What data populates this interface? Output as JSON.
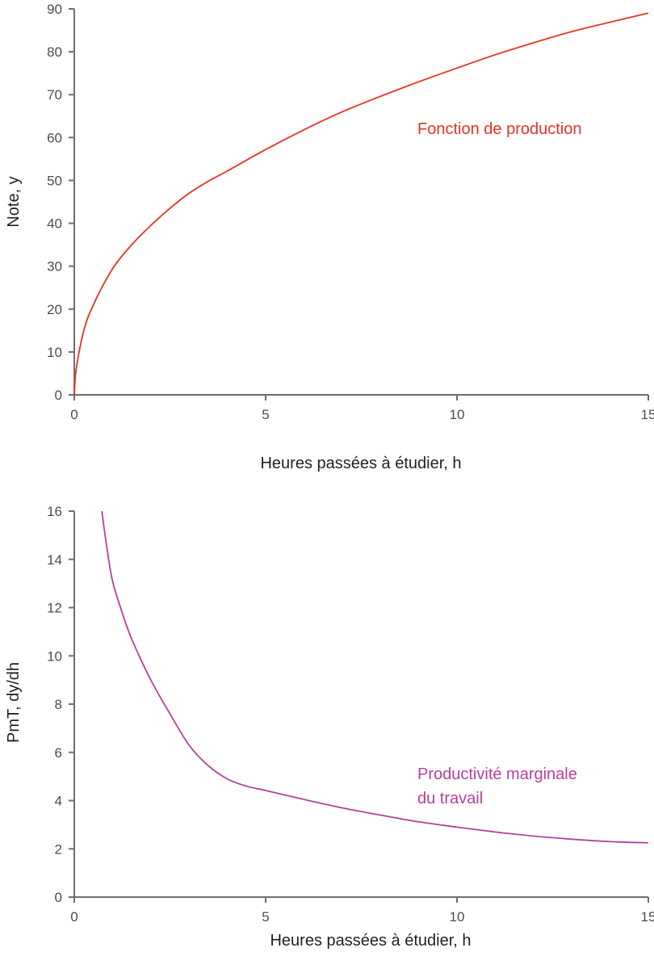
{
  "chart_data": [
    {
      "type": "line",
      "xlabel": "Heures passées à étudier, h",
      "ylabel": "Note, y",
      "xlim": [
        0,
        15
      ],
      "ylim": [
        0,
        90
      ],
      "xticks": [
        "0",
        "5",
        "10",
        "15"
      ],
      "yticks": [
        "0",
        "10",
        "20",
        "30",
        "40",
        "50",
        "60",
        "70",
        "80",
        "90"
      ],
      "grid": false,
      "annotation": "Fonction de production",
      "color": "#e63323",
      "series": [
        {
          "x": [
            0,
            0.05,
            0.25,
            0.5,
            1,
            1.5,
            2,
            2.5,
            3,
            3.5,
            4,
            5,
            6,
            7,
            8,
            9,
            10,
            11,
            12,
            13,
            14,
            15
          ],
          "y": [
            0,
            6,
            15,
            21,
            29.4,
            35,
            39.5,
            43.5,
            47,
            49.8,
            52.2,
            57.2,
            61.8,
            66,
            69.6,
            73,
            76.2,
            79.3,
            82.1,
            84.7,
            86.9,
            89
          ]
        }
      ]
    },
    {
      "type": "line",
      "xlabel": "Heures passées à étudier, h",
      "ylabel": "PmT, dy/dh",
      "xlim": [
        0,
        15
      ],
      "ylim": [
        0,
        16
      ],
      "xticks": [
        "0",
        "5",
        "10",
        "15"
      ],
      "yticks": [
        "0",
        "2",
        "4",
        "6",
        "8",
        "10",
        "12",
        "14",
        "16"
      ],
      "grid": false,
      "annotation": [
        "Productivité marginale",
        "du travail"
      ],
      "color": "#b5409f",
      "series": [
        {
          "x": [
            0.72,
            0.85,
            1,
            1.25,
            1.5,
            2,
            2.5,
            3,
            3.5,
            4,
            4.5,
            5,
            6,
            7,
            8,
            9,
            10,
            11,
            12,
            13,
            14,
            15
          ],
          "y": [
            16,
            14.5,
            13.1,
            11.8,
            10.7,
            9.0,
            7.6,
            6.3,
            5.45,
            4.9,
            4.6,
            4.42,
            4.05,
            3.7,
            3.4,
            3.12,
            2.9,
            2.7,
            2.53,
            2.4,
            2.3,
            2.25
          ]
        }
      ]
    }
  ]
}
